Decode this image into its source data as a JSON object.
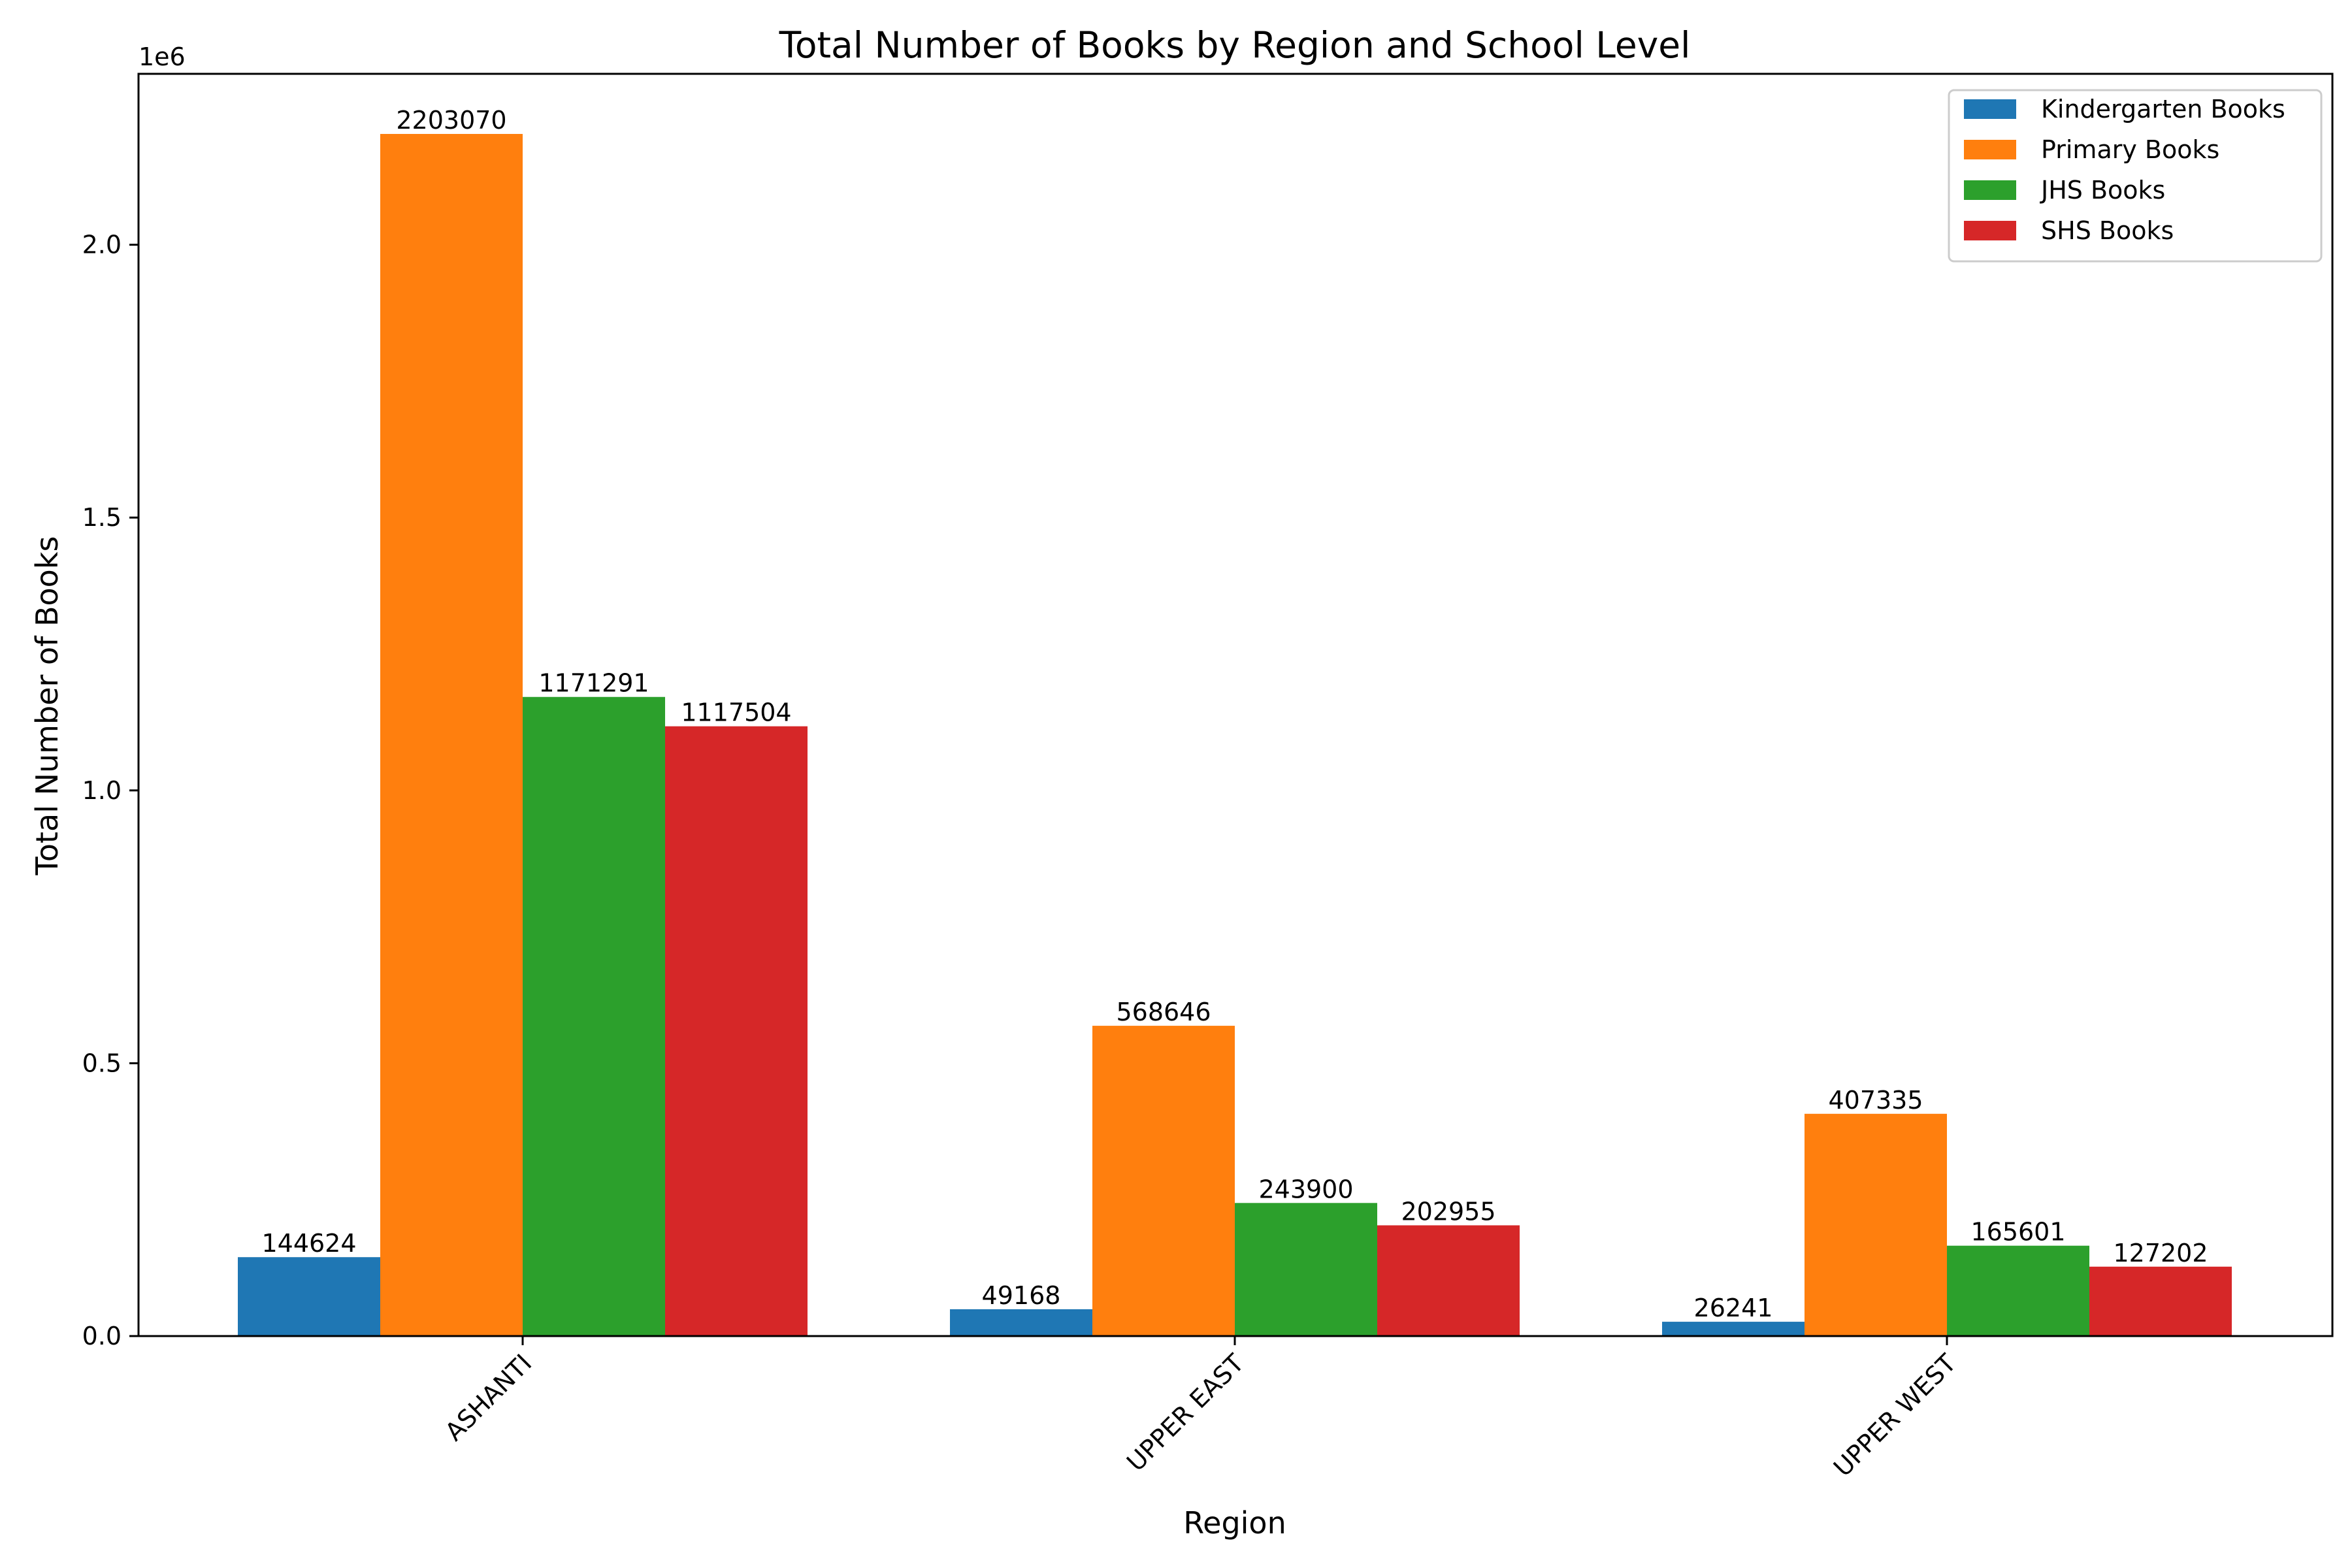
{
  "chart_data": {
    "type": "bar",
    "title": "Total Number of Books by Region and School Level",
    "xlabel": "Region",
    "ylabel": "Total Number of Books",
    "y_offset_label": "1e6",
    "y_tick_labels": [
      "0.0",
      "0.5",
      "1.0",
      "1.5",
      "2.0"
    ],
    "y_ticks": [
      0,
      500000,
      1000000,
      1500000,
      2000000
    ],
    "ylim": [
      0,
      2313223
    ],
    "grid": false,
    "legend_position": "top-right",
    "categories": [
      "ASHANTI",
      "UPPER EAST",
      "UPPER WEST"
    ],
    "series": [
      {
        "name": "Kindergarten Books",
        "color": "#1f77b4",
        "values": [
          144624,
          49168,
          26241
        ]
      },
      {
        "name": "Primary Books",
        "color": "#ff7f0e",
        "values": [
          2203070,
          568646,
          407335
        ]
      },
      {
        "name": "JHS Books",
        "color": "#2ca02c",
        "values": [
          1171291,
          243900,
          165601
        ]
      },
      {
        "name": "SHS Books",
        "color": "#d62728",
        "values": [
          1117504,
          202955,
          127202
        ]
      }
    ]
  }
}
